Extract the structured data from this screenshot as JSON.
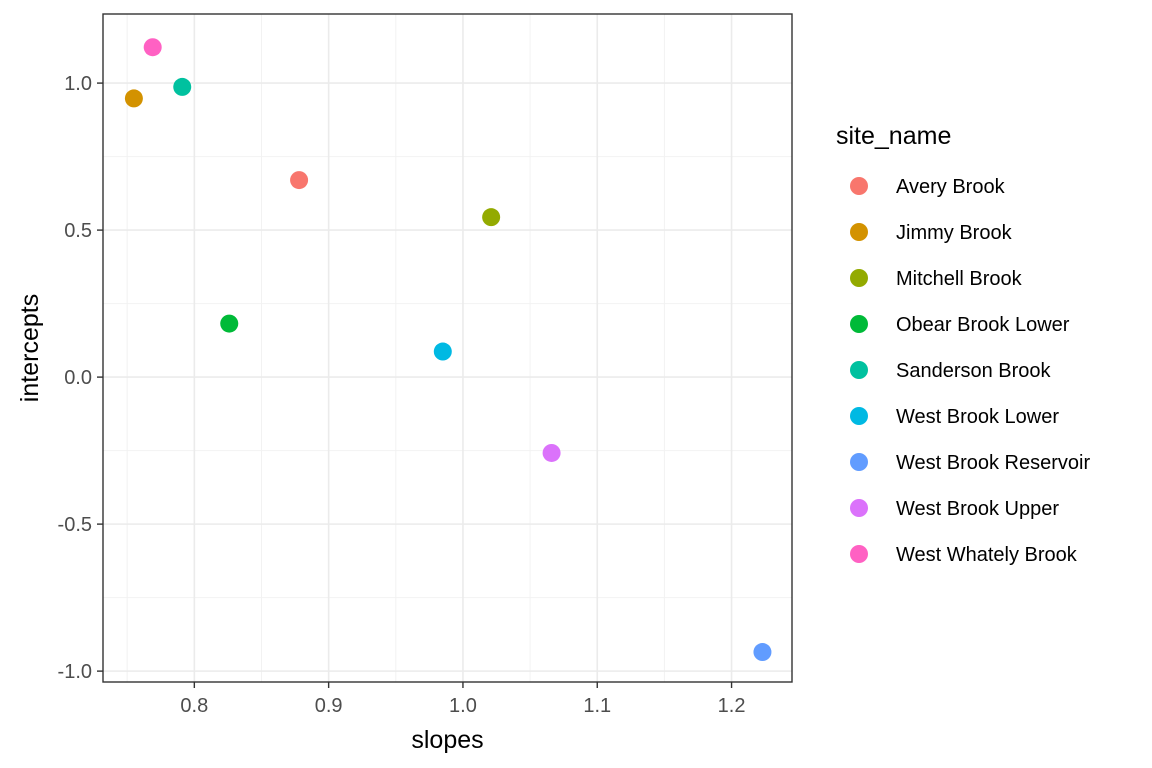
{
  "chart_data": {
    "type": "scatter",
    "xlabel": "slopes",
    "ylabel": "intercepts",
    "xlim": [
      0.732,
      1.245
    ],
    "ylim": [
      -1.037,
      1.235
    ],
    "x_ticks": [
      0.8,
      0.9,
      1.0,
      1.1,
      1.2
    ],
    "x_tick_labels": [
      "0.8",
      "0.9",
      "1.0",
      "1.1",
      "1.2"
    ],
    "y_ticks": [
      -1.0,
      -0.5,
      0.0,
      0.5,
      1.0
    ],
    "y_tick_labels": [
      "-1.0",
      "-0.5",
      "0.0",
      "0.5",
      "1.0"
    ],
    "grid": true,
    "legend": {
      "title": "site_name",
      "placement": "right"
    },
    "series": [
      {
        "name": "Avery Brook",
        "color": "#F8766D",
        "x": 0.878,
        "y": 0.67
      },
      {
        "name": "Jimmy Brook",
        "color": "#D39200",
        "x": 0.755,
        "y": 0.948
      },
      {
        "name": "Mitchell Brook",
        "color": "#93AA00",
        "x": 1.021,
        "y": 0.544
      },
      {
        "name": "Obear Brook Lower",
        "color": "#00BA38",
        "x": 0.826,
        "y": 0.182
      },
      {
        "name": "Sanderson Brook",
        "color": "#00C19F",
        "x": 0.791,
        "y": 0.987
      },
      {
        "name": "West Brook Lower",
        "color": "#00B9E3",
        "x": 0.985,
        "y": 0.087
      },
      {
        "name": "West Brook Reservoir",
        "color": "#619CFF",
        "x": 1.223,
        "y": -0.935
      },
      {
        "name": "West Brook Upper",
        "color": "#DB72FB",
        "x": 1.066,
        "y": -0.258
      },
      {
        "name": "West Whately Brook",
        "color": "#FF61C3",
        "x": 0.769,
        "y": 1.122
      }
    ]
  }
}
